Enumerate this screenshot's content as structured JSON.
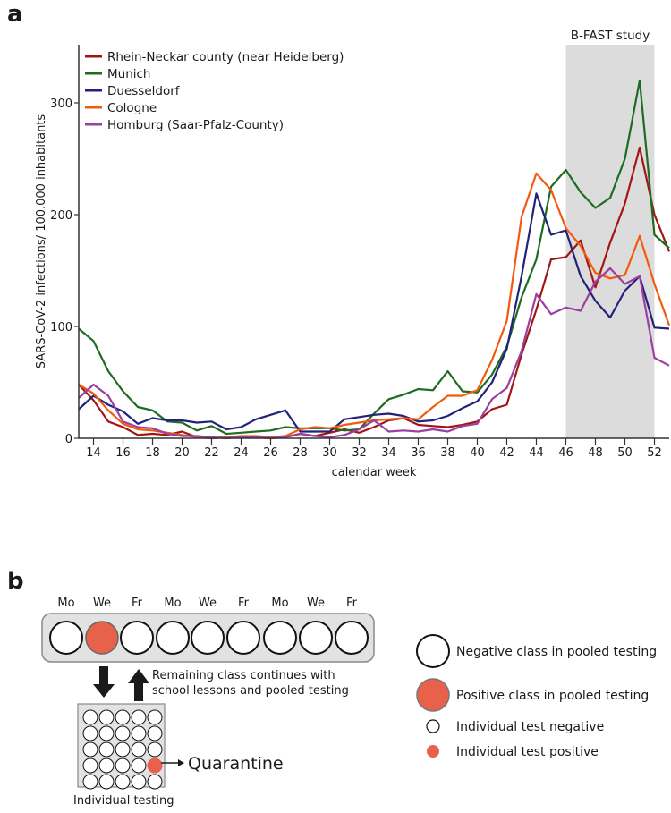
{
  "chart_data": {
    "type": "line",
    "panel_label": "a",
    "xlabel": "calendar week",
    "ylabel": "SARS-CoV-2 infections/ 100.000 inhabitants",
    "x": [
      13,
      14,
      15,
      16,
      17,
      18,
      19,
      20,
      21,
      22,
      23,
      24,
      25,
      26,
      27,
      28,
      29,
      30,
      31,
      32,
      33,
      34,
      35,
      36,
      37,
      38,
      39,
      40,
      41,
      42,
      43,
      44,
      45,
      46,
      47,
      48,
      49,
      50,
      51,
      52,
      53
    ],
    "xlim": [
      13,
      53
    ],
    "ylim": [
      0,
      350
    ],
    "xticks": [
      14,
      16,
      18,
      20,
      22,
      24,
      26,
      28,
      30,
      32,
      34,
      36,
      38,
      40,
      42,
      44,
      46,
      48,
      50,
      52
    ],
    "yticks": [
      0,
      100,
      200,
      300
    ],
    "grid": false,
    "legend_position": "top-left",
    "annotation": {
      "label": "B-FAST study",
      "from_week": 46,
      "to_week": 52,
      "color": "#dcdcdc"
    },
    "series": [
      {
        "name": "Rhein-Neckar county (near Heidelberg)",
        "color": "#a31515",
        "values": [
          48,
          34,
          15,
          10,
          3,
          4,
          3,
          6,
          1,
          0,
          1,
          1,
          1,
          0,
          1,
          4,
          2,
          5,
          8,
          5,
          10,
          16,
          18,
          12,
          11,
          10,
          12,
          15,
          26,
          30,
          75,
          115,
          160,
          162,
          177,
          135,
          175,
          210,
          260,
          200,
          167
        ]
      },
      {
        "name": "Munich",
        "color": "#1e6b22",
        "values": [
          98,
          87,
          60,
          42,
          28,
          25,
          15,
          14,
          7,
          11,
          4,
          5,
          6,
          7,
          10,
          9,
          9,
          9,
          7,
          8,
          22,
          35,
          39,
          44,
          43,
          60,
          42,
          41,
          57,
          82,
          126,
          160,
          225,
          240,
          220,
          206,
          215,
          250,
          320,
          182,
          170
        ]
      },
      {
        "name": "Duesseldorf",
        "color": "#22227a",
        "values": [
          26,
          38,
          30,
          24,
          13,
          18,
          16,
          16,
          14,
          15,
          8,
          10,
          17,
          21,
          25,
          6,
          6,
          6,
          17,
          19,
          21,
          22,
          20,
          15,
          16,
          20,
          27,
          33,
          50,
          80,
          145,
          219,
          182,
          186,
          145,
          123,
          108,
          132,
          145,
          99,
          98
        ]
      },
      {
        "name": "Cologne",
        "color": "#f25a0f",
        "values": [
          48,
          40,
          25,
          13,
          8,
          7,
          5,
          3,
          1,
          0,
          1,
          2,
          2,
          1,
          2,
          8,
          10,
          9,
          12,
          14,
          16,
          17,
          18,
          17,
          28,
          38,
          38,
          43,
          70,
          105,
          198,
          237,
          222,
          188,
          172,
          148,
          143,
          146,
          181,
          138,
          101
        ]
      },
      {
        "name": "Homburg (Saar-Pfalz-County)",
        "color": "#9b3fa0",
        "values": [
          36,
          48,
          38,
          15,
          10,
          9,
          4,
          2,
          2,
          1,
          0,
          1,
          1,
          0,
          1,
          4,
          2,
          1,
          3,
          8,
          16,
          6,
          7,
          6,
          8,
          6,
          11,
          13,
          35,
          45,
          78,
          129,
          111,
          117,
          114,
          140,
          152,
          138,
          145,
          72,
          65
        ]
      }
    ]
  },
  "diagram": {
    "panel_label": "b",
    "days": [
      "Mo",
      "We",
      "Fr",
      "Mo",
      "We",
      "Fr",
      "Mo",
      "We",
      "Fr"
    ],
    "positive_day_index": 1,
    "return_note_line1": "Remaining class continues with",
    "return_note_line2": "school lessons and pooled testing",
    "quarantine_label": "Quarantine",
    "individual_label": "Individual testing",
    "grid_rows": 5,
    "grid_cols": 5,
    "positive_cell": [
      3,
      4
    ],
    "positive_color": "#e8614a",
    "legend": {
      "neg_pool": "Negative class in pooled testing",
      "pos_pool": "Positive class in pooled testing",
      "neg_ind": "Individual test negative",
      "pos_ind": "Individual test positive"
    }
  }
}
